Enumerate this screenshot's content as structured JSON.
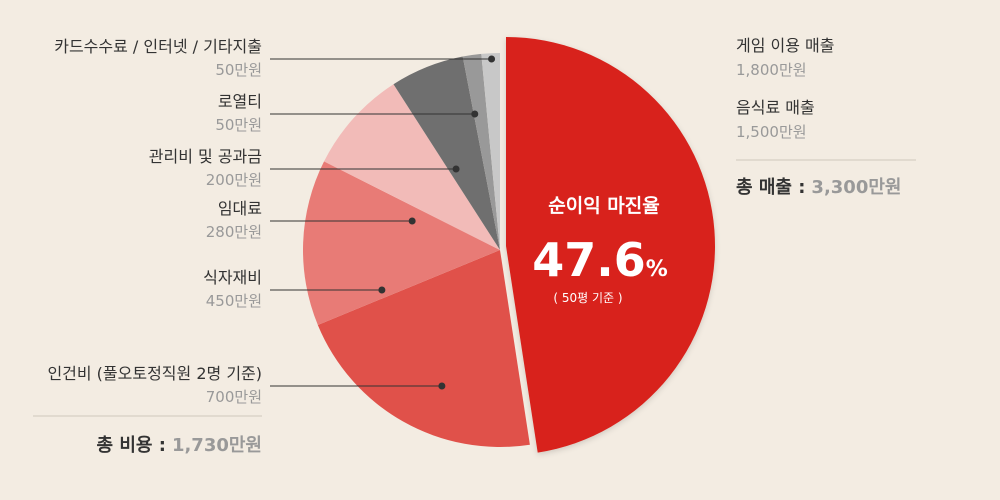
{
  "chart_data": {
    "type": "pie",
    "slices": [
      {
        "label": "순이익 마진율",
        "value": 1570,
        "color": "#d8241c"
      },
      {
        "label": "인건비 (풀오토정직원 2명 기준)",
        "value_text": "700만원",
        "value": 700,
        "color": "#e0514a"
      },
      {
        "label": "식자재비",
        "value_text": "450만원",
        "value": 450,
        "color": "#e87b76"
      },
      {
        "label": "임대료",
        "value_text": "280만원",
        "value": 280,
        "color": "#f2bbb8"
      },
      {
        "label": "관리비 및 공과금",
        "value_text": "200만원",
        "value": 200,
        "color": "#6f6f6f"
      },
      {
        "label": "로열티",
        "value_text": "50만원",
        "value": 50,
        "color": "#999999"
      },
      {
        "label": "카드수수료 / 인터넷 / 기타지출",
        "value_text": "50만원",
        "value": 50,
        "color": "#c8c8c8"
      }
    ],
    "center": {
      "title": "순이익 마진율",
      "value": "47.6",
      "unit": "%",
      "note": "( 50평 기준 )"
    },
    "revenue": [
      {
        "label": "게임 이용 매출",
        "value_text": "1,800만원"
      },
      {
        "label": "음식료 매출",
        "value_text": "1,500만원"
      }
    ],
    "total_revenue": {
      "lead": "총 매출 :",
      "value": "3,300만원"
    },
    "total_cost": {
      "lead": "총 비용 :",
      "value": "1,730만원"
    }
  }
}
